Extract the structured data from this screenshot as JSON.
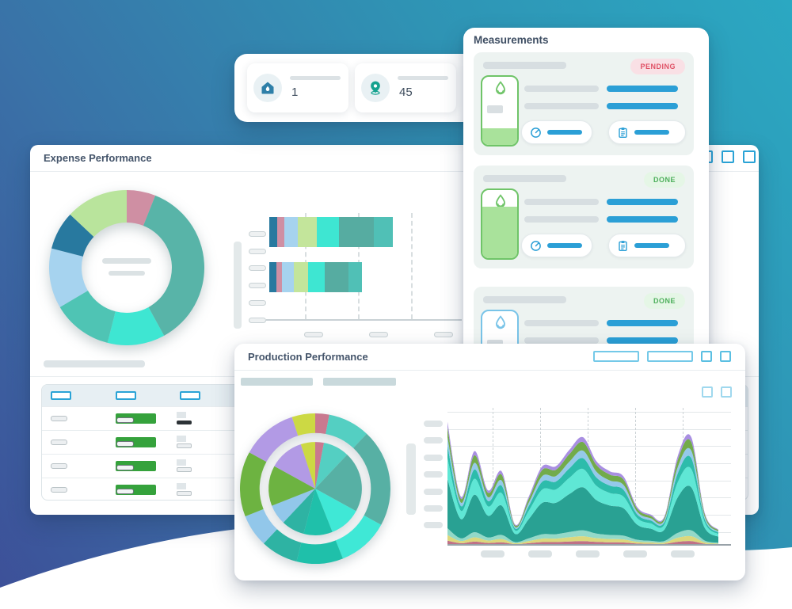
{
  "background": {
    "gradient_start": "#3d4f98",
    "gradient_mid": "#3a71a7",
    "gradient_end": "#2ba8c2",
    "wave_color": "#ffffff"
  },
  "accent_colors": {
    "blue": "#2b9fd6",
    "outline_blue": "#2aa3d6",
    "progress_green": "#35a23c"
  },
  "stats_card": {
    "tiles": [
      {
        "icon": "home-pin-icon",
        "icon_color": "#2e7fa8",
        "value": "1"
      },
      {
        "icon": "location-pin-icon",
        "icon_color": "#14a28f",
        "value": "45"
      }
    ]
  },
  "measurements_card": {
    "title": "Measurements",
    "items": [
      {
        "status": "PENDING",
        "status_color": "#e05266",
        "status_bg": "#f9e0e5",
        "icon": "droplet-icon",
        "accent": "#6fc468",
        "fill_color": "#a9e29b",
        "fill_percent": 24
      },
      {
        "status": "DONE",
        "status_color": "#4daf5b",
        "status_bg": "#e5f6e6",
        "icon": "droplet-icon",
        "accent": "#6fc468",
        "fill_color": "#a9e29b",
        "fill_percent": 76
      },
      {
        "status": "DONE",
        "status_color": "#4daf5b",
        "status_bg": "#e5f6e6",
        "icon": "droplet-icon",
        "accent": "#79c4e8",
        "fill_color": "#a8d9f2",
        "fill_percent": 24
      }
    ],
    "item_buttons": [
      {
        "icon": "gauge-icon"
      },
      {
        "icon": "clipboard-icon"
      }
    ]
  },
  "expense_card": {
    "title": "Expense Performance",
    "header_action_squares": 3,
    "table": {
      "header_cols": 3,
      "rows": [
        {
          "col3": "dark"
        },
        {
          "col3": "light"
        },
        {
          "col3": "light"
        },
        {
          "col3": "light"
        }
      ]
    }
  },
  "production_card": {
    "title": "Production Performance",
    "header_action_rects": 2,
    "header_action_squares": 2,
    "body_action_squares": 2
  },
  "chart_data": [
    {
      "id": "expense-donut",
      "type": "pie",
      "subtype": "donut",
      "values": [
        6,
        36,
        12,
        12.5,
        12.5,
        8,
        13
      ],
      "colors": [
        "#cf8fa3",
        "#58b4a8",
        "#3ee6d2",
        "#4fc4b4",
        "#a6d3ef",
        "#28799f",
        "#b9e49c"
      ],
      "start": "top",
      "direction": "clockwise",
      "inner_radius_ratio": 0.58,
      "center_labels": "placeholder-lines"
    },
    {
      "id": "expense-bars",
      "type": "bar",
      "subtype": "stacked-horizontal",
      "bars": [
        [
          10,
          9,
          17,
          24,
          28,
          44,
          24
        ],
        [
          9,
          7,
          15,
          18,
          21,
          30,
          17
        ]
      ],
      "colors": [
        "#28799f",
        "#cf8fa3",
        "#a6d3ef",
        "#c3e59b",
        "#3ee6d2",
        "#56aca1",
        "#50c0b6"
      ],
      "y_ticks": 6,
      "x_ticks": 3,
      "v_gridlines": 3,
      "grid": "dashed-vertical"
    },
    {
      "id": "production-sunburst",
      "type": "pie",
      "subtype": "sunburst-two-rings",
      "values": [
        3,
        9,
        21,
        11,
        10,
        8,
        7,
        14,
        12,
        5
      ],
      "colors": [
        "#c9798f",
        "#54cfc2",
        "#57b0a4",
        "#3fe8d6",
        "#1fc0aa",
        "#2eb3a3",
        "#92c7ea",
        "#6db341",
        "#b29ae5",
        "#ccd944"
      ],
      "start": "top",
      "direction": "clockwise",
      "rings": [
        [
          0.0,
          0.62
        ],
        [
          0.74,
          1.0
        ]
      ]
    },
    {
      "id": "production-area",
      "type": "area",
      "subtype": "stacked-stream",
      "x_points": 21,
      "profile": [
        0.97,
        0.38,
        0.74,
        0.43,
        0.58,
        0.16,
        0.38,
        0.62,
        0.62,
        0.75,
        0.85,
        0.66,
        0.58,
        0.54,
        0.3,
        0.24,
        0.22,
        0.7,
        0.85,
        0.25,
        0.12
      ],
      "series": [
        {
          "name": "layer-1",
          "color": "#bf7186",
          "share": 0.035
        },
        {
          "name": "layer-2",
          "color": "#dcd87d",
          "share": 0.045
        },
        {
          "name": "layer-3",
          "color": "#93d9c8",
          "share": 0.055
        },
        {
          "name": "layer-4",
          "color": "#29a193",
          "share": 0.4
        },
        {
          "name": "layer-5",
          "color": "#5fe7d5",
          "share": 0.17
        },
        {
          "name": "layer-6",
          "color": "#2dbcab",
          "share": 0.1
        },
        {
          "name": "layer-7",
          "color": "#95c9ea",
          "share": 0.07
        },
        {
          "name": "layer-8",
          "color": "#72ab4b",
          "share": 0.08
        },
        {
          "name": "layer-9",
          "color": "#a98fe2",
          "share": 0.045
        }
      ],
      "y_ticks": 7,
      "x_ticks": 5,
      "h_gridlines": 8,
      "v_gridlines": 5,
      "grid": "solid-horizontal-dashed-vertical"
    }
  ]
}
